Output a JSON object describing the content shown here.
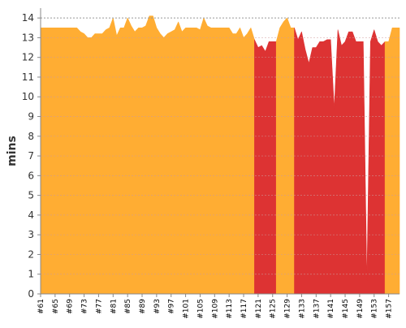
{
  "chart_data": {
    "type": "area",
    "ylabel": "mins",
    "xlabel": "",
    "ylim": [
      0,
      14.5
    ],
    "yticks": [
      0,
      1,
      2,
      3,
      4,
      5,
      6,
      7,
      8,
      9,
      10,
      11,
      12,
      13,
      14
    ],
    "xticks": [
      "#61",
      "#65",
      "#69",
      "#73",
      "#77",
      "#81",
      "#85",
      "#89",
      "#93",
      "#97",
      "#101",
      "#105",
      "#109",
      "#113",
      "#117",
      "#121",
      "#125",
      "#129",
      "#133",
      "#137",
      "#141",
      "#145",
      "#149",
      "#153",
      "#157"
    ],
    "grid": true,
    "legend": "none",
    "colors": {
      "success": "#ffad33",
      "failure": "#dd3333",
      "grid": "#cc9999",
      "reference_line": "#999999"
    },
    "reference_line": 14,
    "x": [
      61,
      62,
      63,
      64,
      65,
      66,
      67,
      68,
      69,
      70,
      71,
      72,
      73,
      74,
      75,
      76,
      77,
      78,
      79,
      80,
      81,
      82,
      83,
      84,
      85,
      86,
      87,
      88,
      89,
      90,
      91,
      92,
      93,
      94,
      95,
      96,
      97,
      98,
      99,
      100,
      101,
      102,
      103,
      104,
      105,
      106,
      107,
      108,
      109,
      110,
      111,
      112,
      113,
      114,
      115,
      116,
      117,
      118,
      119,
      120,
      121,
      122,
      123,
      124,
      125,
      126,
      127,
      128,
      129,
      130,
      131,
      132,
      133,
      134,
      135,
      136,
      137,
      138,
      139,
      140,
      141,
      142,
      143,
      144,
      145,
      146,
      147,
      148,
      149,
      150,
      151,
      152,
      153,
      154,
      155,
      156,
      157,
      158,
      159,
      160
    ],
    "values": [
      13.5,
      13.5,
      13.5,
      13.5,
      13.5,
      13.5,
      13.5,
      13.5,
      13.5,
      13.5,
      13.5,
      13.3,
      13.2,
      13.0,
      13.0,
      13.2,
      13.2,
      13.2,
      13.4,
      13.5,
      14.0,
      13.1,
      13.5,
      13.5,
      14.0,
      13.6,
      13.3,
      13.5,
      13.5,
      13.6,
      14.1,
      14.1,
      13.5,
      13.2,
      13.0,
      13.2,
      13.3,
      13.4,
      13.8,
      13.3,
      13.5,
      13.5,
      13.5,
      13.5,
      13.4,
      14.0,
      13.6,
      13.5,
      13.5,
      13.5,
      13.5,
      13.5,
      13.5,
      13.2,
      13.2,
      13.5,
      13.0,
      13.2,
      13.5,
      12.9,
      12.5,
      12.6,
      12.3,
      12.8,
      12.8,
      12.8,
      13.5,
      13.8,
      14.0,
      13.5,
      13.5,
      12.9,
      13.3,
      12.4,
      11.7,
      12.5,
      12.5,
      12.8,
      12.8,
      12.9,
      12.9,
      9.4,
      13.4,
      12.6,
      12.8,
      13.3,
      13.3,
      12.8,
      12.8,
      12.8,
      0.6,
      12.8,
      13.4,
      12.8,
      12.6,
      12.8,
      12.8,
      13.5,
      13.5,
      13.5
    ],
    "status": [
      "success",
      "success",
      "success",
      "success",
      "success",
      "success",
      "success",
      "success",
      "success",
      "success",
      "success",
      "success",
      "success",
      "success",
      "success",
      "success",
      "success",
      "success",
      "success",
      "success",
      "success",
      "success",
      "success",
      "success",
      "success",
      "success",
      "success",
      "success",
      "success",
      "success",
      "success",
      "success",
      "success",
      "success",
      "success",
      "success",
      "success",
      "success",
      "success",
      "success",
      "success",
      "success",
      "success",
      "success",
      "success",
      "success",
      "success",
      "success",
      "success",
      "success",
      "success",
      "success",
      "success",
      "success",
      "success",
      "success",
      "success",
      "success",
      "success",
      "success",
      "failure",
      "failure",
      "failure",
      "failure",
      "failure",
      "failure",
      "success",
      "success",
      "success",
      "success",
      "success",
      "failure",
      "failure",
      "failure",
      "failure",
      "failure",
      "failure",
      "failure",
      "failure",
      "failure",
      "failure",
      "failure",
      "failure",
      "failure",
      "failure",
      "failure",
      "failure",
      "failure",
      "failure",
      "failure",
      "failure",
      "failure",
      "failure",
      "failure",
      "failure",
      "failure",
      "success",
      "success",
      "success",
      "success"
    ]
  }
}
